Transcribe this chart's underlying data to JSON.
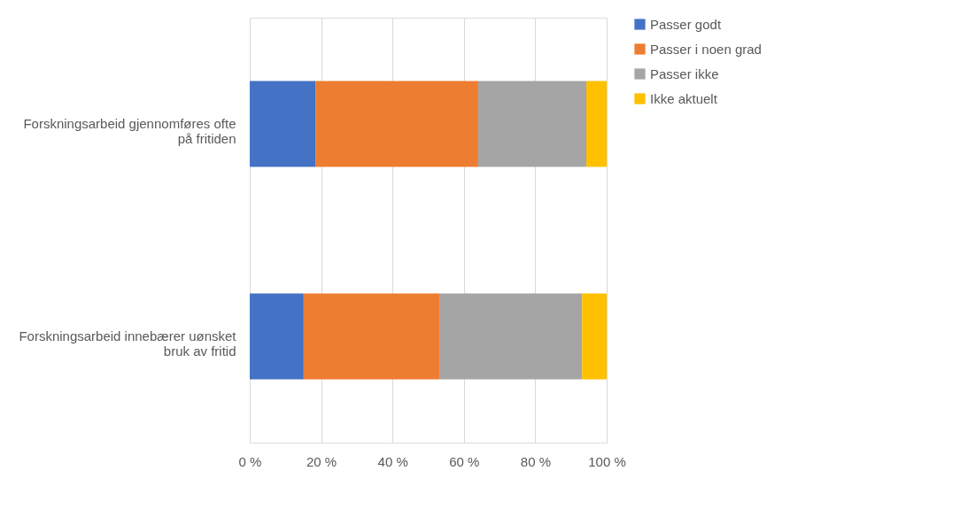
{
  "chart_data": {
    "type": "bar",
    "orientation": "horizontal",
    "stacked": true,
    "categories": [
      "Forskningsarbeid gjennomføres ofte på fritiden",
      "Forskningsarbeid innebærer uønsket bruk av fritid"
    ],
    "series": [
      {
        "name": "Passer godt",
        "color": "#4472c4",
        "values": [
          18.4,
          15.1
        ]
      },
      {
        "name": "Passer i noen grad",
        "color": "#ed7d31",
        "values": [
          45.6,
          38.2
        ]
      },
      {
        "name": "Passer ikke",
        "color": "#a5a5a5",
        "values": [
          30.3,
          39.8
        ]
      },
      {
        "name": "Ikke aktuelt",
        "color": "#ffc000",
        "values": [
          5.7,
          6.9
        ]
      }
    ],
    "xlim": [
      0,
      100
    ],
    "xticks": [
      {
        "value": 0,
        "label": "0 %"
      },
      {
        "value": 20,
        "label": "20 %"
      },
      {
        "value": 40,
        "label": "40 %"
      },
      {
        "value": 60,
        "label": "60 %"
      },
      {
        "value": 80,
        "label": "80 %"
      },
      {
        "value": 100,
        "label": "100 %"
      }
    ],
    "grid": "x",
    "legend": "right"
  }
}
